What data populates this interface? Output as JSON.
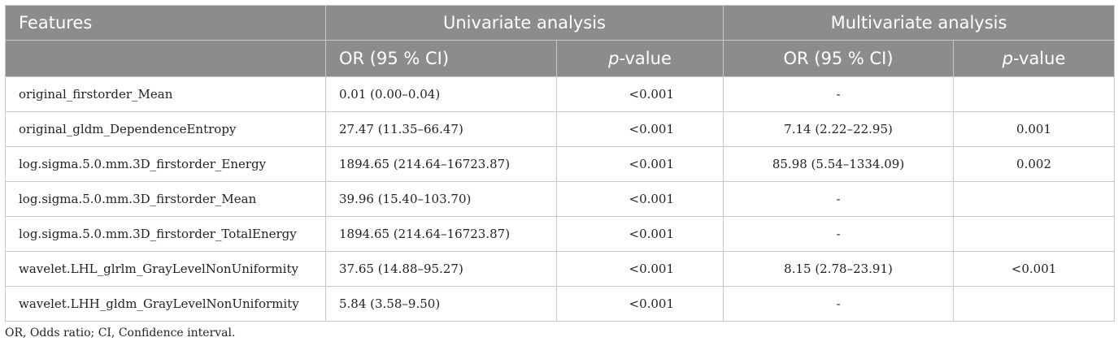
{
  "header": {
    "features": "Features",
    "univariate": "Univariate analysis",
    "multivariate": "Multivariate analysis",
    "or_ci": "OR (95 % CI)",
    "p_prefix": "p",
    "p_suffix": "-value"
  },
  "rows": [
    {
      "feature": "original_firstorder_Mean",
      "uni_or": "0.01 (0.00–0.04)",
      "uni_p": "<0.001",
      "multi_or": "-",
      "multi_p": ""
    },
    {
      "feature": "original_gldm_DependenceEntropy",
      "uni_or": "27.47 (11.35–66.47)",
      "uni_p": "<0.001",
      "multi_or": "7.14 (2.22–22.95)",
      "multi_p": "0.001"
    },
    {
      "feature": "log.sigma.5.0.mm.3D_firstorder_Energy",
      "uni_or": "1894.65 (214.64–16723.87)",
      "uni_p": "<0.001",
      "multi_or": "85.98 (5.54–1334.09)",
      "multi_p": "0.002"
    },
    {
      "feature": "log.sigma.5.0.mm.3D_firstorder_Mean",
      "uni_or": "39.96 (15.40–103.70)",
      "uni_p": "<0.001",
      "multi_or": "-",
      "multi_p": ""
    },
    {
      "feature": "log.sigma.5.0.mm.3D_firstorder_TotalEnergy",
      "uni_or": "1894.65 (214.64–16723.87)",
      "uni_p": "<0.001",
      "multi_or": "-",
      "multi_p": ""
    },
    {
      "feature": "wavelet.LHL_glrlm_GrayLevelNonUniformity",
      "uni_or": "37.65 (14.88–95.27)",
      "uni_p": "<0.001",
      "multi_or": "8.15 (2.78–23.91)",
      "multi_p": "<0.001"
    },
    {
      "feature": "wavelet.LHH_gldm_GrayLevelNonUniformity",
      "uni_or": "5.84 (3.58–9.50)",
      "uni_p": "<0.001",
      "multi_or": "-",
      "multi_p": ""
    }
  ],
  "footnote": "OR, Odds ratio; CI, Confidence interval."
}
